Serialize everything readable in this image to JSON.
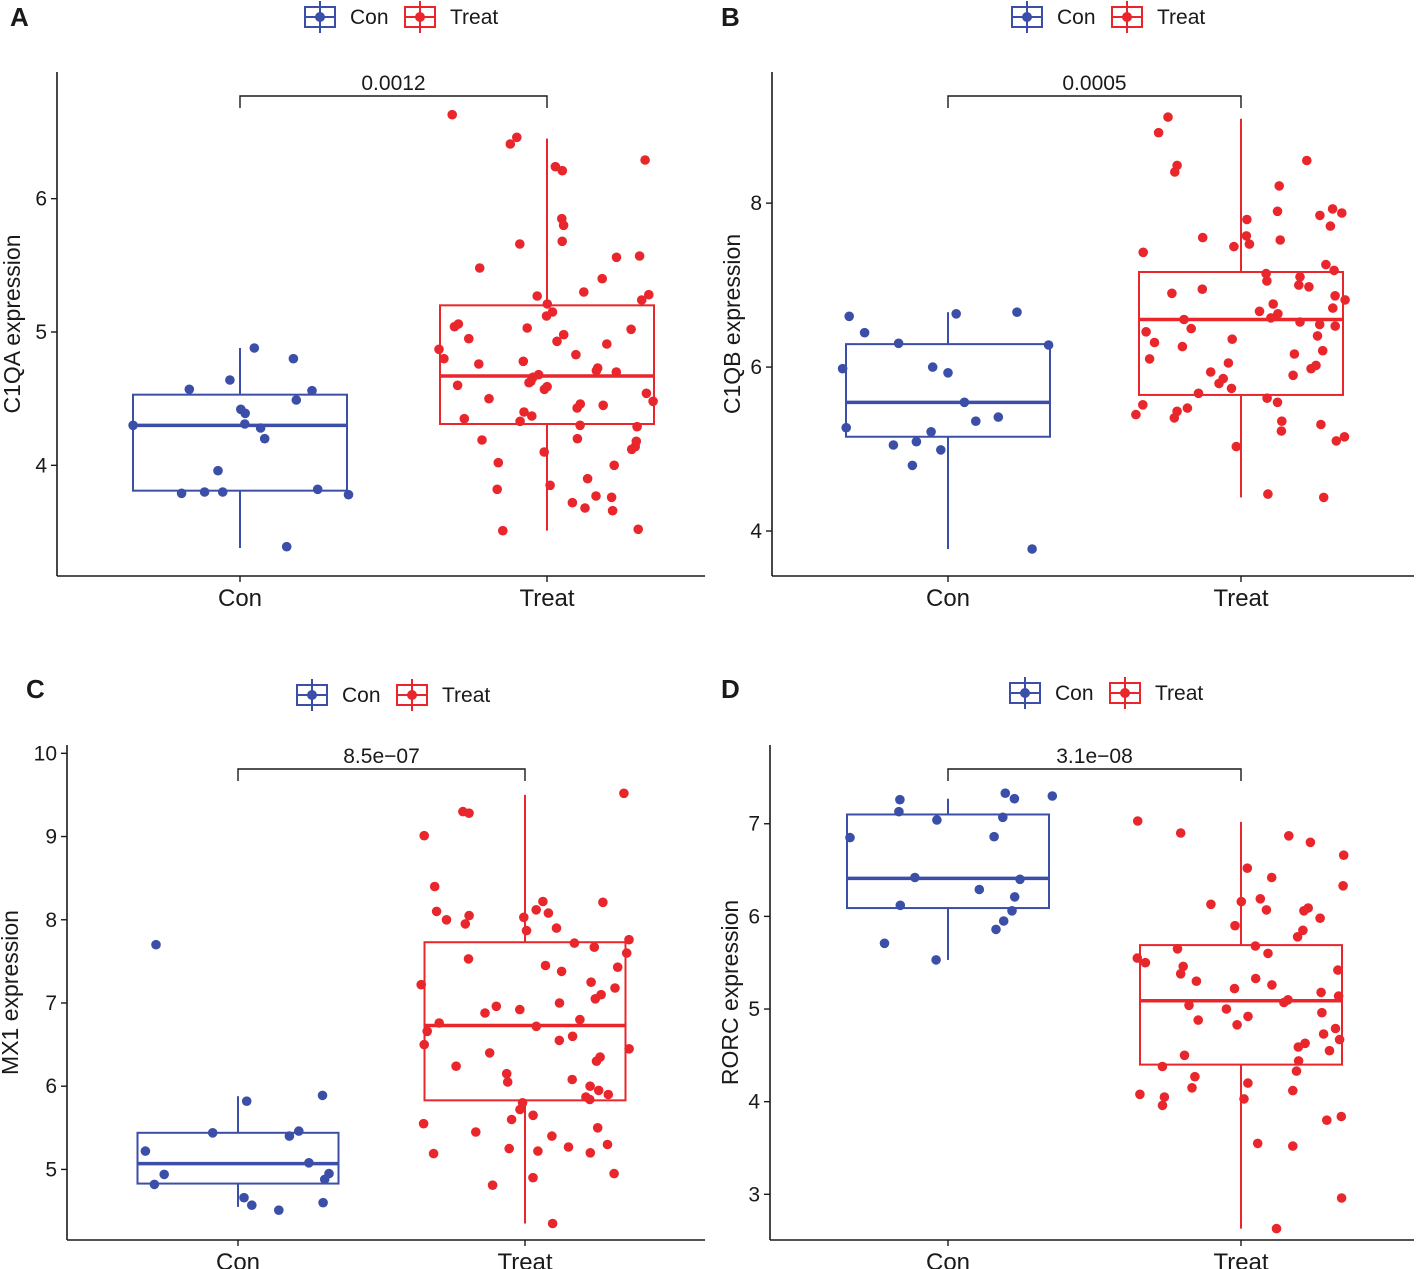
{
  "colors": {
    "con": "#3b4ea8",
    "treat": "#e8262c",
    "axis": "#1a1a1a"
  },
  "legend": {
    "con_label": "Con",
    "treat_label": "Treat"
  },
  "chart_data": [
    {
      "panel": "A",
      "type": "box",
      "ylabel": "C1QA expression",
      "ylim": [
        3.2,
        6.95
      ],
      "yticks": [
        4,
        5,
        6
      ],
      "categories": [
        "Con",
        "Treat"
      ],
      "pvalue": "0.0012",
      "series": [
        {
          "name": "Con",
          "box": {
            "q1": 3.81,
            "median": 4.3,
            "q3": 4.53,
            "whisker_low": 3.38,
            "whisker_high": 4.88
          },
          "points": [
            4.8,
            4.88,
            4.64,
            4.57,
            4.56,
            4.49,
            4.42,
            4.39,
            4.31,
            4.3,
            4.28,
            4.2,
            3.96,
            3.82,
            3.8,
            3.8,
            3.79,
            3.78,
            3.39
          ]
        },
        {
          "name": "Treat",
          "box": {
            "q1": 4.31,
            "median": 4.67,
            "q3": 5.2,
            "whisker_low": 3.51,
            "whisker_high": 6.45
          },
          "points": [
            6.63,
            6.46,
            6.41,
            6.29,
            6.24,
            6.21,
            5.85,
            5.8,
            5.68,
            5.66,
            5.57,
            5.56,
            5.48,
            5.4,
            5.3,
            5.28,
            5.27,
            5.24,
            5.21,
            5.15,
            5.12,
            5.06,
            5.04,
            5.03,
            5.02,
            4.98,
            4.95,
            4.93,
            4.91,
            4.87,
            4.83,
            4.8,
            4.78,
            4.76,
            4.73,
            4.71,
            4.7,
            4.68,
            4.66,
            4.63,
            4.62,
            4.6,
            4.59,
            4.57,
            4.54,
            4.5,
            4.48,
            4.46,
            4.45,
            4.43,
            4.4,
            4.37,
            4.35,
            4.33,
            4.3,
            4.29,
            4.2,
            4.19,
            4.18,
            4.14,
            4.12,
            4.1,
            4.02,
            4.0,
            3.9,
            3.85,
            3.82,
            3.77,
            3.76,
            3.72,
            3.68,
            3.66,
            3.52,
            3.51
          ]
        }
      ]
    },
    {
      "panel": "B",
      "type": "box",
      "ylabel": "C1QB expression",
      "ylim": [
        3.5,
        9.6
      ],
      "yticks": [
        4,
        6,
        8
      ],
      "categories": [
        "Con",
        "Treat"
      ],
      "pvalue": "0.0005",
      "series": [
        {
          "name": "Con",
          "box": {
            "q1": 5.15,
            "median": 5.57,
            "q3": 6.28,
            "whisker_low": 3.78,
            "whisker_high": 6.67
          },
          "points": [
            6.67,
            6.65,
            6.62,
            6.42,
            6.29,
            6.27,
            6.0,
            5.98,
            5.93,
            5.57,
            5.39,
            5.34,
            5.26,
            5.21,
            5.09,
            5.05,
            4.99,
            4.8,
            3.78
          ]
        },
        {
          "name": "Treat",
          "box": {
            "q1": 5.66,
            "median": 6.58,
            "q3": 7.16,
            "whisker_low": 4.41,
            "whisker_high": 9.03
          },
          "points": [
            9.05,
            8.86,
            8.52,
            8.46,
            8.38,
            8.21,
            7.93,
            7.9,
            7.88,
            7.85,
            7.8,
            7.72,
            7.6,
            7.58,
            7.55,
            7.5,
            7.47,
            7.4,
            7.25,
            7.18,
            7.14,
            7.1,
            7.05,
            7.0,
            6.98,
            6.95,
            6.9,
            6.87,
            6.82,
            6.77,
            6.72,
            6.68,
            6.65,
            6.6,
            6.58,
            6.55,
            6.52,
            6.5,
            6.47,
            6.43,
            6.38,
            6.34,
            6.3,
            6.25,
            6.2,
            6.16,
            6.1,
            6.05,
            6.02,
            5.98,
            5.94,
            5.9,
            5.86,
            5.8,
            5.74,
            5.68,
            5.62,
            5.57,
            5.54,
            5.5,
            5.46,
            5.42,
            5.38,
            5.34,
            5.3,
            5.22,
            5.15,
            5.1,
            5.03,
            4.45,
            4.41
          ]
        }
      ]
    },
    {
      "panel": "C",
      "type": "box",
      "ylabel": "MX1 expression",
      "ylim": [
        4.2,
        10.1
      ],
      "yticks": [
        5,
        6,
        7,
        8,
        9,
        10
      ],
      "categories": [
        "Con",
        "Treat"
      ],
      "pvalue": "8.5e−07",
      "series": [
        {
          "name": "Con",
          "box": {
            "q1": 4.83,
            "median": 5.07,
            "q3": 5.44,
            "whisker_low": 4.55,
            "whisker_high": 5.88
          },
          "points": [
            7.7,
            5.89,
            5.82,
            5.46,
            5.44,
            5.4,
            5.22,
            5.08,
            4.95,
            4.94,
            4.88,
            4.82,
            4.66,
            4.6,
            4.57,
            4.51
          ]
        },
        {
          "name": "Treat",
          "box": {
            "q1": 5.83,
            "median": 6.73,
            "q3": 7.73,
            "whisker_low": 4.35,
            "whisker_high": 9.5
          },
          "points": [
            9.52,
            9.3,
            9.28,
            9.01,
            8.4,
            8.22,
            8.21,
            8.12,
            8.1,
            8.08,
            8.05,
            8.03,
            8.0,
            7.95,
            7.9,
            7.87,
            7.76,
            7.72,
            7.67,
            7.6,
            7.53,
            7.45,
            7.43,
            7.38,
            7.25,
            7.22,
            7.18,
            7.1,
            7.05,
            7.0,
            6.96,
            6.92,
            6.88,
            6.8,
            6.76,
            6.72,
            6.66,
            6.6,
            6.55,
            6.5,
            6.45,
            6.4,
            6.35,
            6.3,
            6.24,
            6.15,
            6.08,
            6.05,
            6.0,
            5.95,
            5.9,
            5.87,
            5.84,
            5.8,
            5.72,
            5.65,
            5.6,
            5.55,
            5.5,
            5.45,
            5.4,
            5.3,
            5.27,
            5.25,
            5.22,
            5.2,
            5.19,
            4.95,
            4.9,
            4.81,
            4.35
          ]
        }
      ]
    },
    {
      "panel": "D",
      "type": "box",
      "ylabel": "RORC expression",
      "ylim": [
        2.55,
        7.85
      ],
      "yticks": [
        3,
        4,
        5,
        6,
        7
      ],
      "categories": [
        "Con",
        "Treat"
      ],
      "pvalue": "3.1e−08",
      "series": [
        {
          "name": "Con",
          "box": {
            "q1": 6.09,
            "median": 6.41,
            "q3": 7.1,
            "whisker_low": 5.53,
            "whisker_high": 7.27
          },
          "points": [
            7.33,
            7.3,
            7.27,
            7.26,
            7.13,
            7.07,
            7.04,
            6.86,
            6.85,
            6.42,
            6.4,
            6.29,
            6.21,
            6.12,
            6.06,
            5.95,
            5.86,
            5.71,
            5.53
          ]
        },
        {
          "name": "Treat",
          "box": {
            "q1": 4.4,
            "median": 5.09,
            "q3": 5.69,
            "whisker_low": 2.63,
            "whisker_high": 7.02
          },
          "points": [
            7.03,
            6.9,
            6.87,
            6.8,
            6.66,
            6.52,
            6.42,
            6.33,
            6.19,
            6.16,
            6.13,
            6.09,
            6.07,
            6.06,
            5.98,
            5.9,
            5.85,
            5.78,
            5.68,
            5.65,
            5.6,
            5.55,
            5.5,
            5.46,
            5.42,
            5.38,
            5.33,
            5.3,
            5.26,
            5.22,
            5.18,
            5.14,
            5.1,
            5.07,
            5.04,
            5.0,
            4.96,
            4.92,
            4.88,
            4.83,
            4.79,
            4.73,
            4.67,
            4.63,
            4.59,
            4.55,
            4.5,
            4.44,
            4.38,
            4.33,
            4.27,
            4.2,
            4.15,
            4.12,
            4.08,
            4.05,
            4.03,
            3.96,
            3.84,
            3.8,
            3.55,
            3.52,
            2.96,
            2.63
          ]
        }
      ]
    }
  ]
}
